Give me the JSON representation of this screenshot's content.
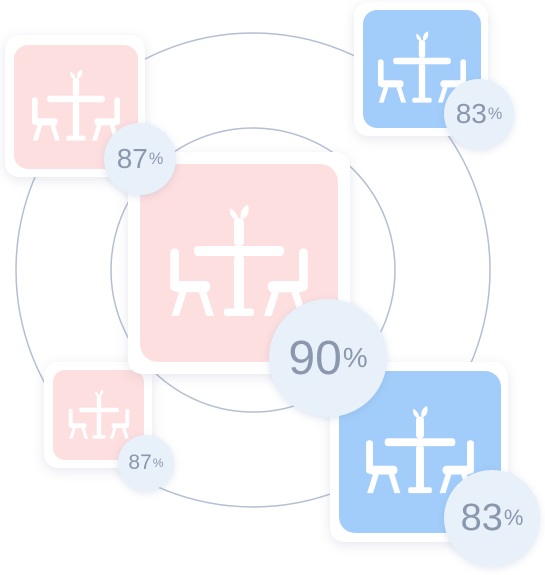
{
  "colors": {
    "pink": "#fddfdf",
    "blue": "#a2cdfa",
    "ring": "#b3bfd2",
    "badge_bg": "#e8f0fa",
    "badge_text": "#8a97ad"
  },
  "icon": "dining-table-icon",
  "tables": [
    {
      "id": "top-left",
      "color": "pink",
      "value": "87",
      "unit": "%"
    },
    {
      "id": "top-right",
      "color": "blue",
      "value": "83",
      "unit": "%"
    },
    {
      "id": "center",
      "color": "pink",
      "value": "90",
      "unit": "%"
    },
    {
      "id": "bottom-left",
      "color": "pink",
      "value": "87",
      "unit": "%"
    },
    {
      "id": "bottom-right",
      "color": "blue",
      "value": "83",
      "unit": "%"
    }
  ]
}
